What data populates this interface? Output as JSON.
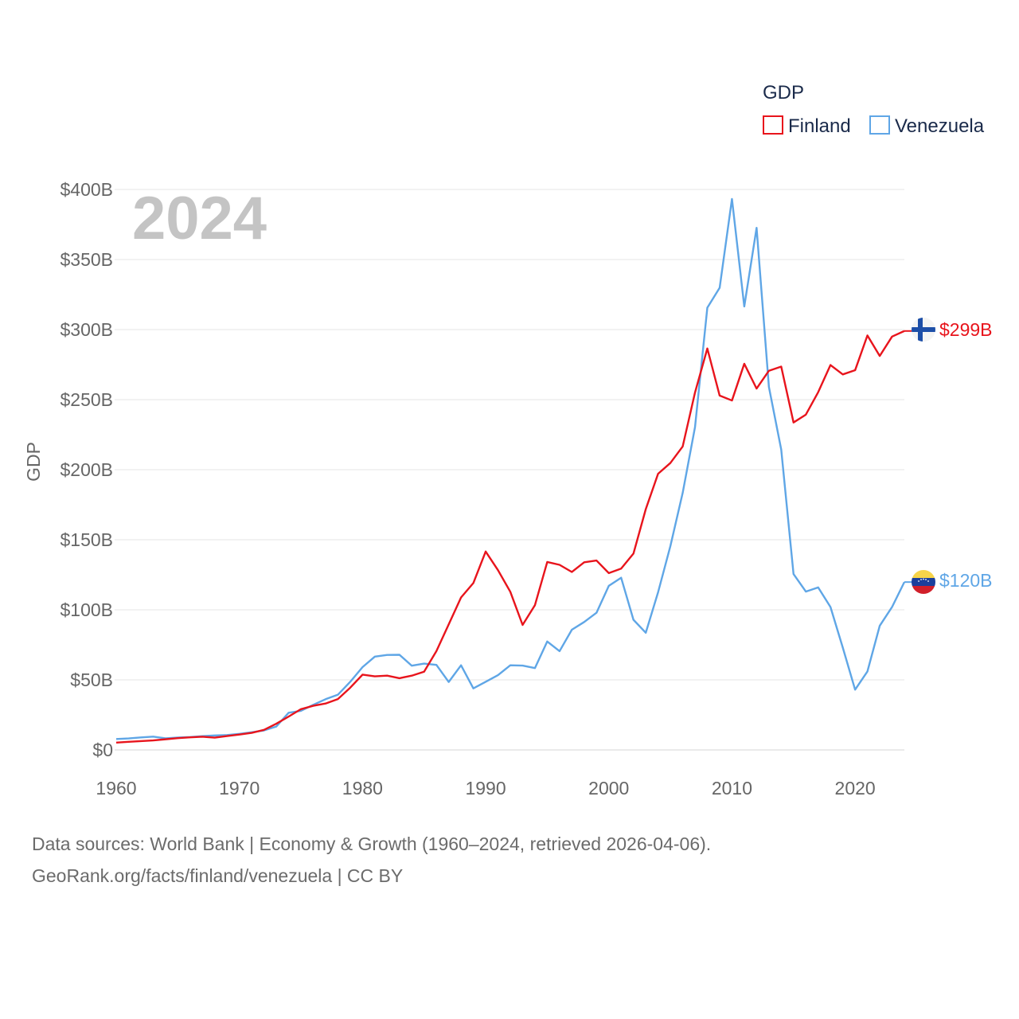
{
  "chart_data": {
    "type": "line",
    "title": "GDP",
    "ylabel": "GDP",
    "xlabel": "",
    "year_label": "2024",
    "xlim": [
      1960,
      2024
    ],
    "ylim": [
      0,
      400
    ],
    "x_ticks": [
      1960,
      1970,
      1980,
      1990,
      2000,
      2010,
      2020
    ],
    "y_ticks": [
      {
        "value": 0,
        "label": "$0"
      },
      {
        "value": 50,
        "label": "$50B"
      },
      {
        "value": 100,
        "label": "$100B"
      },
      {
        "value": 150,
        "label": "$150B"
      },
      {
        "value": 200,
        "label": "$200B"
      },
      {
        "value": 250,
        "label": "$250B"
      },
      {
        "value": 300,
        "label": "$300B"
      },
      {
        "value": 350,
        "label": "$350B"
      },
      {
        "value": 400,
        "label": "$400B"
      }
    ],
    "grid": true,
    "legend": {
      "title": "GDP",
      "placement": "top-right"
    },
    "x": [
      1960,
      1961,
      1962,
      1963,
      1964,
      1965,
      1966,
      1967,
      1968,
      1969,
      1970,
      1971,
      1972,
      1973,
      1974,
      1975,
      1976,
      1977,
      1978,
      1979,
      1980,
      1981,
      1982,
      1983,
      1984,
      1985,
      1986,
      1987,
      1988,
      1989,
      1990,
      1991,
      1992,
      1993,
      1994,
      1995,
      1996,
      1997,
      1998,
      1999,
      2000,
      2001,
      2002,
      2003,
      2004,
      2005,
      2006,
      2007,
      2008,
      2009,
      2010,
      2011,
      2012,
      2013,
      2014,
      2015,
      2016,
      2017,
      2018,
      2019,
      2020,
      2021,
      2022,
      2023,
      2024
    ],
    "series": [
      {
        "name": "Finland",
        "color": "#e8141c",
        "end_label": "$299B",
        "flag": "finland",
        "values": [
          5.2,
          5.8,
          6.3,
          6.8,
          7.6,
          8.4,
          9.0,
          9.4,
          8.8,
          9.9,
          11.0,
          12.2,
          14.3,
          18.7,
          23.8,
          29.1,
          31.5,
          33.1,
          36.3,
          44.4,
          53.7,
          52.5,
          53.0,
          51.2,
          53.0,
          55.8,
          70.5,
          89.6,
          108.8,
          119.1,
          141.6,
          128.3,
          112.9,
          89.2,
          103.3,
          134.1,
          132.1,
          127.0,
          133.9,
          135.2,
          126.2,
          129.4,
          140.1,
          171.8,
          197.1,
          204.8,
          216.6,
          255.1,
          286.5,
          252.9,
          249.4,
          275.6,
          257.9,
          270.6,
          273.6,
          233.7,
          239.3,
          255.3,
          274.7,
          268.0,
          271.0,
          295.8,
          281.2,
          295.0,
          299.0
        ]
      },
      {
        "name": "Venezuela",
        "color": "#5fa6e6",
        "end_label": "$120B",
        "flag": "venezuela",
        "values": [
          7.8,
          8.2,
          8.9,
          9.5,
          8.3,
          8.8,
          9.2,
          9.8,
          10.3,
          10.6,
          11.5,
          12.6,
          13.9,
          16.7,
          26.5,
          27.9,
          32.2,
          36.2,
          39.4,
          48.6,
          59.1,
          66.6,
          67.8,
          67.9,
          60.1,
          61.6,
          60.7,
          48.5,
          60.4,
          43.9,
          48.6,
          53.4,
          60.4,
          60.2,
          58.4,
          77.4,
          70.5,
          85.8,
          91.3,
          97.9,
          117.1,
          122.9,
          92.9,
          83.6,
          112.5,
          145.5,
          183.5,
          230.4,
          315.6,
          329.8,
          393.2,
          316.5,
          372.6,
          259.1,
          214.4,
          125.5,
          113.0,
          116.0,
          102.0,
          73.0,
          43.0,
          56.0,
          88.6,
          102.0,
          119.8
        ]
      }
    ]
  },
  "footer": {
    "line1": "Data sources: World Bank | Economy & Growth (1960–2024, retrieved 2026-04-06).",
    "line2": "GeoRank.org/facts/finland/venezuela | CC BY"
  }
}
